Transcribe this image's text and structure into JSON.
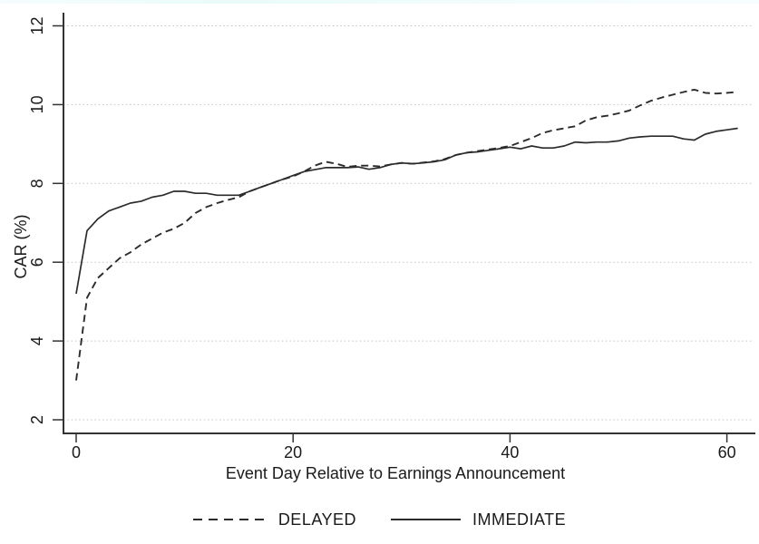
{
  "chart_data": {
    "type": "line",
    "title": "",
    "xlabel": "Event Day Relative to Earnings Announcement",
    "ylabel": "CAR (%)",
    "xticks": [
      0,
      20,
      40,
      60
    ],
    "yticks": [
      2,
      4,
      6,
      8,
      10,
      12
    ],
    "xlim": [
      -1.2,
      62.6
    ],
    "ylim": [
      1.65,
      12.35
    ],
    "grid": "horizontal-dotted",
    "legend_position": "bottom-center",
    "line_color": "#2b2b2b",
    "grid_color": "#c4c4c4",
    "axis_color": "#333333",
    "text_color": "#1a1a1a",
    "background_color": "#ffffff",
    "x": [
      0,
      1,
      2,
      3,
      4,
      5,
      6,
      7,
      8,
      9,
      10,
      11,
      12,
      13,
      14,
      15,
      16,
      17,
      18,
      19,
      20,
      21,
      22,
      23,
      24,
      25,
      26,
      27,
      28,
      29,
      30,
      31,
      32,
      33,
      34,
      35,
      36,
      37,
      38,
      39,
      40,
      41,
      42,
      43,
      44,
      45,
      46,
      47,
      48,
      49,
      50,
      51,
      52,
      53,
      54,
      55,
      56,
      57,
      58,
      59,
      60,
      61
    ],
    "series": [
      {
        "name": "DELAYED",
        "style": "dashed",
        "values": [
          3.0,
          5.1,
          5.6,
          5.85,
          6.1,
          6.25,
          6.45,
          6.6,
          6.75,
          6.85,
          7.0,
          7.25,
          7.4,
          7.5,
          7.58,
          7.65,
          7.8,
          7.9,
          8.0,
          8.1,
          8.18,
          8.3,
          8.45,
          8.55,
          8.5,
          8.42,
          8.45,
          8.45,
          8.43,
          8.48,
          8.52,
          8.5,
          8.53,
          8.56,
          8.62,
          8.72,
          8.78,
          8.82,
          8.86,
          8.9,
          8.95,
          9.05,
          9.15,
          9.28,
          9.35,
          9.4,
          9.45,
          9.6,
          9.68,
          9.72,
          9.78,
          9.85,
          9.98,
          10.1,
          10.18,
          10.25,
          10.32,
          10.38,
          10.3,
          10.28,
          10.3,
          10.32
        ]
      },
      {
        "name": "IMMEDIATE",
        "style": "solid",
        "values": [
          5.2,
          6.8,
          7.1,
          7.3,
          7.4,
          7.5,
          7.55,
          7.65,
          7.7,
          7.8,
          7.8,
          7.75,
          7.75,
          7.7,
          7.7,
          7.7,
          7.8,
          7.9,
          8.0,
          8.1,
          8.2,
          8.3,
          8.35,
          8.4,
          8.4,
          8.4,
          8.42,
          8.36,
          8.4,
          8.48,
          8.52,
          8.5,
          8.52,
          8.55,
          8.6,
          8.72,
          8.78,
          8.8,
          8.84,
          8.88,
          8.92,
          8.88,
          8.95,
          8.9,
          8.9,
          8.95,
          9.05,
          9.03,
          9.05,
          9.05,
          9.08,
          9.15,
          9.18,
          9.2,
          9.2,
          9.2,
          9.13,
          9.1,
          9.25,
          9.32,
          9.36,
          9.4
        ]
      }
    ]
  }
}
